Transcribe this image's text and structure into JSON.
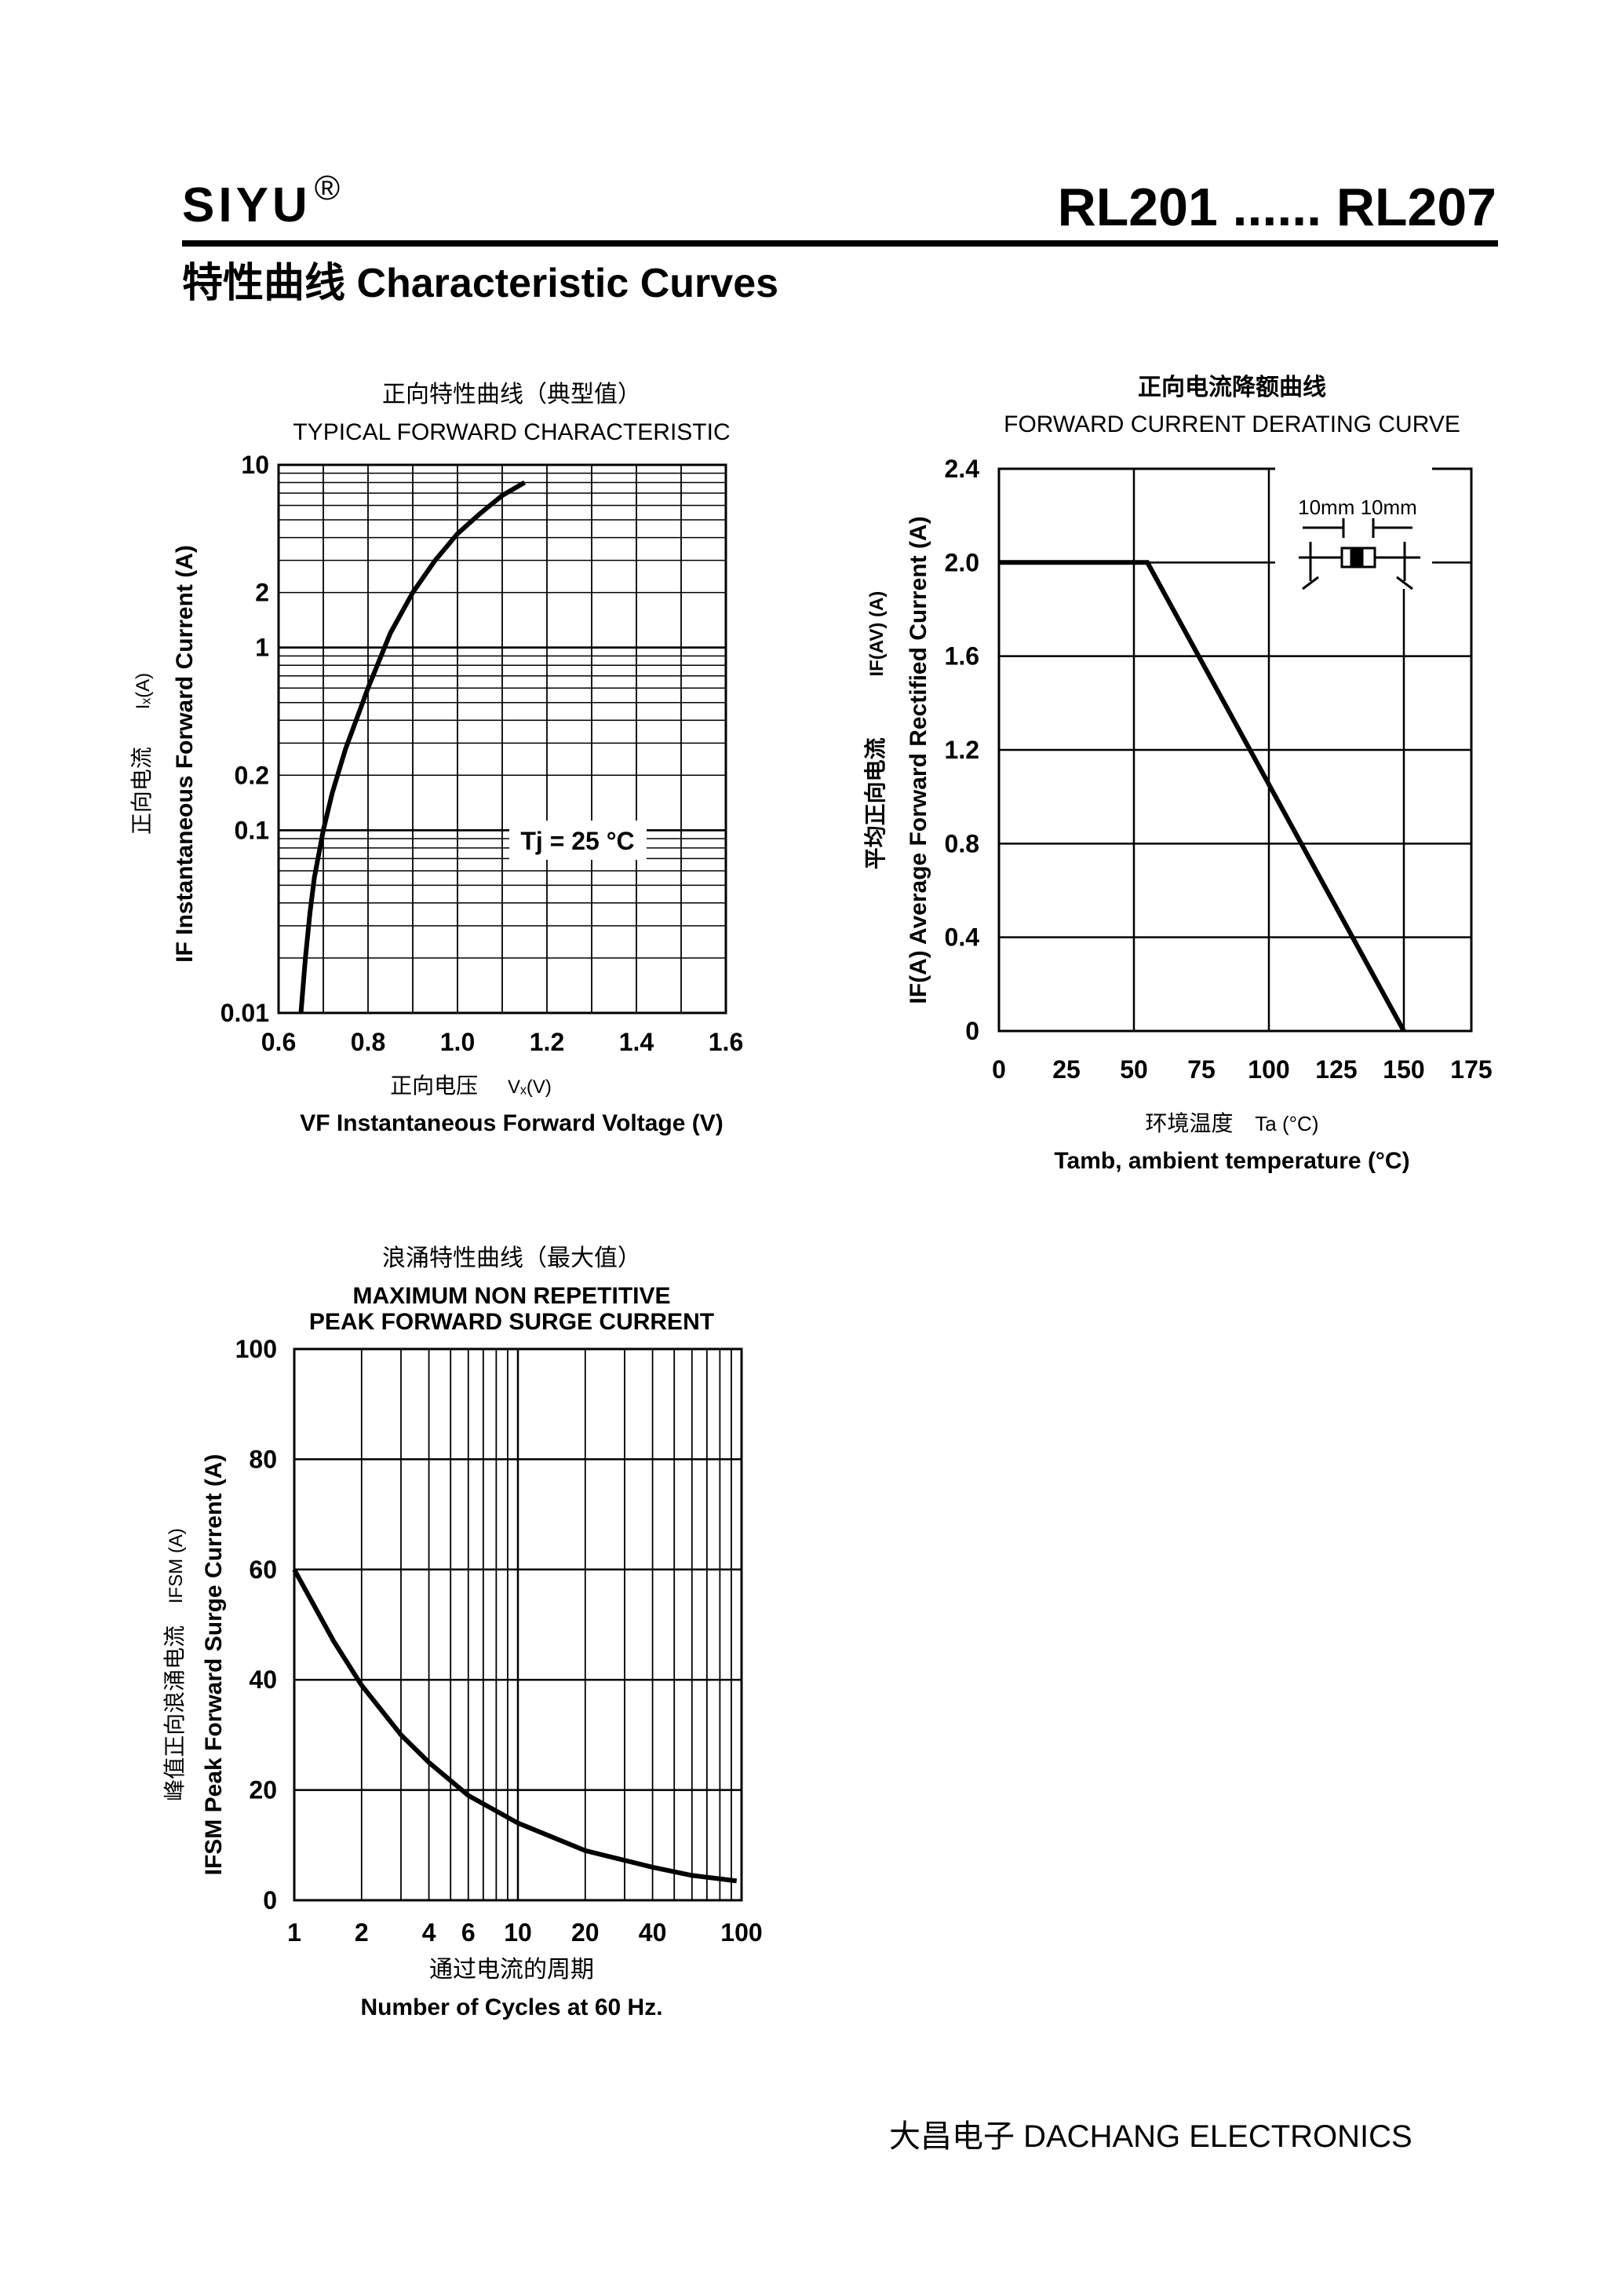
{
  "header": {
    "brand": "SIYU",
    "brand_mark": "®",
    "model_range": "RL201 ...... RL207",
    "section_title": "特性曲线   Characteristic Curves"
  },
  "footer": {
    "company": "大昌电子   DACHANG ELECTRONICS"
  },
  "chart_data": [
    {
      "type": "line",
      "title_cn": "正向特性曲线（典型值）",
      "title": "TYPICAL FORWARD CHARACTERISTIC",
      "xlabel_cn": "正向电压",
      "xlabel_symbol": "Vₓ(V)",
      "xlabel": "VF Instantaneous Forward Voltage (V)",
      "ylabel_cn": "正向电流",
      "ylabel_symbol": "Iₓ(A)",
      "ylabel": "IF Instantaneous Forward Current (A)",
      "xlim": [
        0.6,
        1.6
      ],
      "ylim": [
        0.01,
        10
      ],
      "y_scale": "log",
      "x_ticks": [
        "0.6",
        "0.8",
        "1.0",
        "1.2",
        "1.4",
        "1.6"
      ],
      "y_ticks": [
        {
          "value": 10,
          "label": "10"
        },
        {
          "value": 2,
          "label": "2"
        },
        {
          "value": 1,
          "label": "1"
        },
        {
          "value": 0.2,
          "label": "0.2"
        },
        {
          "value": 0.1,
          "label": "0.1"
        },
        {
          "value": 0.01,
          "label": "0.01"
        }
      ],
      "annotation": "Tj = 25 °C",
      "grid": true,
      "series": [
        {
          "x": [
            0.65,
            0.66,
            0.67,
            0.68,
            0.7,
            0.72,
            0.75,
            0.8,
            0.85,
            0.9,
            0.95,
            1.0,
            1.05,
            1.1,
            1.15
          ],
          "values": [
            0.01,
            0.02,
            0.035,
            0.055,
            0.1,
            0.16,
            0.28,
            0.6,
            1.2,
            2.0,
            3.0,
            4.2,
            5.4,
            6.8,
            8.0
          ]
        }
      ]
    },
    {
      "type": "line",
      "title_cn": "正向电流降额曲线",
      "title": "FORWARD CURRENT DERATING CURVE",
      "xlabel_cn": "环境温度",
      "xlabel_symbol": "Ta (°C)",
      "xlabel": "Tamb, ambient temperature (°C)",
      "ylabel_cn": "平均正向电流",
      "ylabel_symbol": "IF(AV) (A)",
      "ylabel": "IF(A) Average Forward Rectified Current (A)",
      "xlim": [
        0,
        175
      ],
      "ylim": [
        0,
        2.4
      ],
      "x_ticks": [
        "0",
        "25",
        "50",
        "75",
        "100",
        "125",
        "150",
        "175"
      ],
      "y_ticks": [
        "2.4",
        "2.0",
        "1.6",
        "1.2",
        "0.8",
        "0.4",
        "0"
      ],
      "inset_label": "10mm  10mm",
      "grid": true,
      "series": [
        {
          "x": [
            0,
            55,
            150
          ],
          "values": [
            2.0,
            2.0,
            0
          ]
        }
      ]
    },
    {
      "type": "line",
      "title_cn": "浪涌特性曲线（最大值）",
      "title_line1": "MAXIMUM NON REPETITIVE",
      "title_line2": "PEAK FORWARD SURGE CURRENT",
      "xlabel_cn": "通过电流的周期",
      "xlabel": "Number  of  Cycles at 60 Hz.",
      "ylabel_cn": "峰值正向浪涌电流",
      "ylabel_symbol": "IFSM (A)",
      "ylabel": "IFSM Peak Forward Surge Current (A)",
      "xlim": [
        1,
        100
      ],
      "x_scale": "log",
      "ylim": [
        0,
        100
      ],
      "x_ticks": [
        {
          "value": 1,
          "label": "1"
        },
        {
          "value": 2,
          "label": "2"
        },
        {
          "value": 4,
          "label": "4"
        },
        {
          "value": 6,
          "label": "6"
        },
        {
          "value": 10,
          "label": "10"
        },
        {
          "value": 20,
          "label": "20"
        },
        {
          "value": 40,
          "label": "40"
        },
        {
          "value": 100,
          "label": "100"
        }
      ],
      "y_ticks": [
        "100",
        "80",
        "60",
        "40",
        "20",
        "0"
      ],
      "grid": true,
      "series": [
        {
          "x": [
            1,
            1.5,
            2,
            3,
            4,
            6,
            10,
            20,
            40,
            60,
            95
          ],
          "values": [
            60,
            47,
            39,
            30,
            25,
            19,
            14,
            9,
            6,
            4.5,
            3.5
          ]
        }
      ]
    }
  ]
}
